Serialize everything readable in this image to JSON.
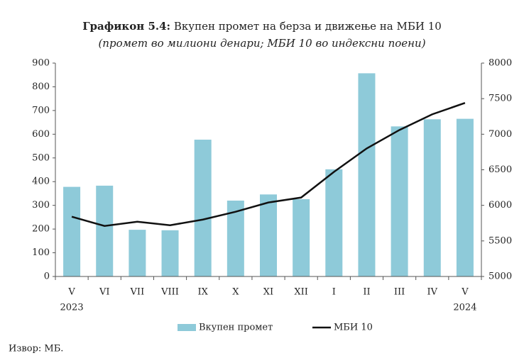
{
  "chart_data": {
    "type": "bar_line",
    "title_label": "Графикон 5.4:",
    "title": "Вкупен промет на берза и движење на МБИ 10",
    "subtitle": "(промет во милиони денари; МБИ 10 во индексни поени)",
    "categories": [
      "V",
      "VI",
      "VII",
      "VIII",
      "IX",
      "X",
      "XI",
      "XII",
      "I",
      "II",
      "III",
      "IV",
      "V"
    ],
    "year_labels": [
      "2023",
      null,
      null,
      null,
      null,
      null,
      null,
      null,
      null,
      null,
      null,
      null,
      "2024"
    ],
    "series": [
      {
        "name": "Вкупен промет",
        "type": "bar",
        "color": "#8ecad9",
        "values": [
          378,
          383,
          197,
          195,
          577,
          320,
          346,
          326,
          452,
          857,
          633,
          663,
          665
        ]
      },
      {
        "name": "МБИ 10",
        "type": "line",
        "axis": "y2",
        "color": "#111111",
        "values": [
          5840,
          5710,
          5770,
          5720,
          5800,
          5910,
          6040,
          6110,
          6470,
          6800,
          7060,
          7280,
          7440
        ]
      }
    ],
    "ylim": [
      0,
      900
    ],
    "yticks": [
      0,
      100,
      200,
      300,
      400,
      500,
      600,
      700,
      800,
      900
    ],
    "y2lim": [
      5000,
      8000
    ],
    "y2ticks": [
      5000,
      5500,
      6000,
      6500,
      7000,
      7500,
      8000
    ],
    "legend": "bottom",
    "source": "Извор: МБ."
  }
}
